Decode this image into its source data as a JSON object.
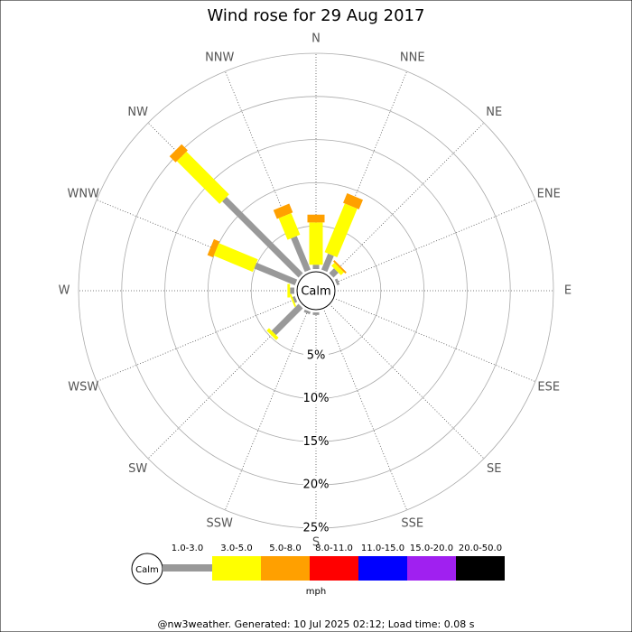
{
  "chart_data": {
    "type": "windrose",
    "title": "Wind rose for 29 Aug 2017",
    "directions": [
      "N",
      "NNE",
      "NE",
      "ENE",
      "E",
      "ESE",
      "SE",
      "SSE",
      "S",
      "SSW",
      "SW",
      "WSW",
      "W",
      "WNW",
      "NW",
      "NNW"
    ],
    "series": [
      {
        "name": "1.0-3.0",
        "color": "#999999",
        "values": [
          0.5,
          2,
          0.8,
          0.3,
          0,
          0,
          0,
          0,
          0.3,
          0.3,
          4.4,
          0.3,
          0.5,
          5.1,
          12.5,
          4.2
        ]
      },
      {
        "name": "3.0-5.0",
        "color": "#ffff00",
        "values": [
          4.9,
          6.1,
          0.5,
          0,
          0,
          0,
          0,
          0,
          0,
          0,
          0.4,
          0.2,
          0.3,
          4.9,
          7,
          2.7
        ]
      },
      {
        "name": "5.0-8.0",
        "color": "#ffa000",
        "values": [
          0.9,
          1.2,
          0.2,
          0,
          0,
          0,
          0,
          0,
          0,
          0,
          0,
          0,
          0,
          0.7,
          1,
          1.1
        ]
      },
      {
        "name": "8.0-11.0",
        "color": "#ff0000",
        "values": [
          0,
          0,
          0,
          0,
          0,
          0,
          0,
          0,
          0,
          0,
          0,
          0,
          0,
          0,
          0,
          0
        ]
      },
      {
        "name": "11.0-15.0",
        "color": "#0000ff",
        "values": [
          0,
          0,
          0,
          0,
          0,
          0,
          0,
          0,
          0,
          0,
          0,
          0,
          0,
          0,
          0,
          0
        ]
      },
      {
        "name": "15.0-20.0",
        "color": "#a020f0",
        "values": [
          0,
          0,
          0,
          0,
          0,
          0,
          0,
          0,
          0,
          0,
          0,
          0,
          0,
          0,
          0,
          0
        ]
      },
      {
        "name": "20.0-50.0",
        "color": "#000000",
        "values": [
          0,
          0,
          0,
          0,
          0,
          0,
          0,
          0,
          0,
          0,
          0,
          0,
          0,
          0,
          0,
          0
        ]
      }
    ],
    "rlim": [
      0,
      25
    ],
    "rticks": [
      {
        "value": 5,
        "label": "5%"
      },
      {
        "value": 10,
        "label": "10%"
      },
      {
        "value": 15,
        "label": "15%"
      },
      {
        "value": 20,
        "label": "20%"
      },
      {
        "value": 25,
        "label": "25%"
      }
    ],
    "calm_label": "Calm",
    "unit": "mph"
  },
  "footer": "@nw3weather.  Generated: 10 Jul 2025 02:12; Load time: 0.08 s"
}
